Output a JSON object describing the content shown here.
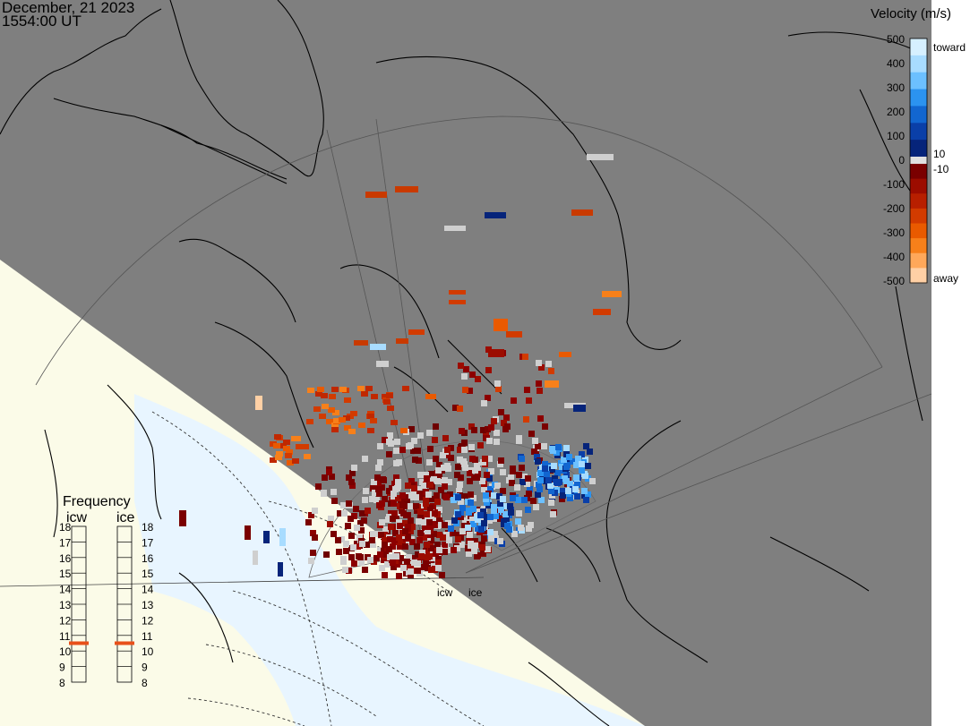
{
  "header": {
    "date": "December, 21 2023",
    "time": "1554:00 UT"
  },
  "colorbar": {
    "title": "Velocity (m/s)",
    "toward_label": "toward",
    "away_label": "away",
    "ticks": [
      "500",
      "400",
      "300",
      "200",
      "100",
      "0",
      "-100",
      "-200",
      "-300",
      "-400",
      "-500"
    ],
    "small_pos": "10",
    "small_neg": "-10",
    "colors_toward": [
      "#d6f0ff",
      "#a8dcff",
      "#6cc0ff",
      "#2b93f0",
      "#1266d0",
      "#0a3fa8",
      "#06247a"
    ],
    "colors_away": [
      "#7a0000",
      "#9c0c00",
      "#b81f00",
      "#d23b00",
      "#e95a00",
      "#f7801a",
      "#ffa85a",
      "#ffd0a5"
    ]
  },
  "frequency": {
    "title": "Frequency",
    "radars": [
      "icw",
      "ice"
    ],
    "ticks": [
      "18",
      "17",
      "16",
      "15",
      "14",
      "13",
      "12",
      "11",
      "10",
      "9",
      "8"
    ],
    "selected": [
      10.5,
      10.5
    ],
    "marker_color": "#e8501a"
  },
  "radar_labels": [
    "icw",
    "ice"
  ],
  "colors": {
    "night": "#7f7f7f",
    "land_day": "#fbfbe8",
    "ocean_day": "#e8f5ff",
    "ground_scatter": "#cfcfcf"
  }
}
